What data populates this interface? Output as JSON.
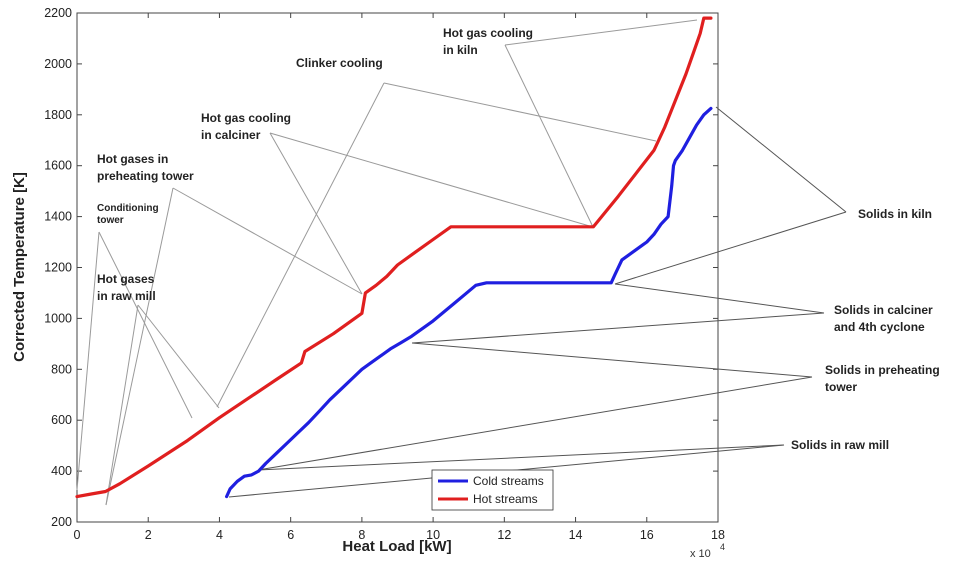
{
  "chart_data": {
    "type": "line",
    "xlabel": "Heat Load [kW]",
    "ylabel": "Corrected Temperature [K]",
    "x_multiplier_label": "x 10",
    "x_multiplier_exp": "4",
    "xlim": [
      0,
      180000
    ],
    "ylim": [
      200,
      2200
    ],
    "xticks": [
      0,
      20000,
      40000,
      60000,
      80000,
      100000,
      120000,
      140000,
      160000,
      180000
    ],
    "xtick_labels": [
      "0",
      "2",
      "4",
      "6",
      "8",
      "10",
      "12",
      "14",
      "16",
      "18"
    ],
    "yticks": [
      200,
      400,
      600,
      800,
      1000,
      1200,
      1400,
      1600,
      1800,
      2000,
      2200
    ],
    "ytick_labels": [
      "200",
      "400",
      "600",
      "800",
      "1000",
      "1200",
      "1400",
      "1600",
      "1800",
      "2000",
      "2200"
    ],
    "grid": false,
    "legend_position": "bottom-center",
    "series": [
      {
        "name": "Cold streams",
        "color": "#1f1fe0",
        "x": [
          42000,
          43000,
          45000,
          47000,
          49000,
          51000,
          53000,
          56000,
          59000,
          62000,
          65000,
          68000,
          71000,
          74000,
          77000,
          80000,
          82000,
          85000,
          88000,
          91000,
          94000,
          97000,
          100000,
          103000,
          106000,
          109000,
          112000,
          115000,
          120000,
          130000,
          140000,
          150000,
          151000,
          152000,
          153000,
          155000,
          157000,
          159000,
          160000,
          162000,
          164000,
          166000,
          167000,
          167500,
          168000,
          170000,
          172000,
          174000,
          176000,
          178000
        ],
        "y": [
          300,
          330,
          360,
          380,
          385,
          400,
          430,
          470,
          510,
          550,
          590,
          635,
          680,
          720,
          760,
          800,
          820,
          850,
          880,
          905,
          930,
          960,
          990,
          1025,
          1060,
          1095,
          1130,
          1140,
          1140,
          1140,
          1140,
          1140,
          1170,
          1200,
          1230,
          1250,
          1270,
          1290,
          1300,
          1330,
          1370,
          1400,
          1520,
          1600,
          1620,
          1660,
          1710,
          1760,
          1800,
          1825
        ]
      },
      {
        "name": "Hot streams",
        "color": "#e01f1f",
        "x": [
          0,
          4000,
          8000,
          12000,
          20000,
          31000,
          40000,
          48000,
          56000,
          63000,
          64000,
          72000,
          80000,
          81000,
          84000,
          87000,
          90000,
          95000,
          100000,
          105000,
          115000,
          125000,
          135000,
          145000,
          152000,
          157000,
          162000,
          163000,
          165000,
          167000,
          169000,
          171000,
          173000,
          175000,
          176000,
          178000
        ],
        "y": [
          300,
          310,
          320,
          350,
          420,
          520,
          610,
          685,
          760,
          825,
          870,
          940,
          1020,
          1100,
          1130,
          1165,
          1210,
          1260,
          1310,
          1360,
          1360,
          1360,
          1360,
          1360,
          1480,
          1570,
          1660,
          1690,
          1750,
          1820,
          1890,
          1960,
          2040,
          2120,
          2180,
          2180
        ]
      }
    ],
    "annotations": [
      {
        "lines": [
          "Hot gas cooling",
          "in kiln"
        ],
        "color": "#222222"
      },
      {
        "lines": [
          "Clinker cooling"
        ],
        "color": "#222222"
      },
      {
        "lines": [
          "Hot gas cooling",
          "in calciner"
        ],
        "color": "#222222"
      },
      {
        "lines": [
          "Hot gases in",
          "preheating tower"
        ],
        "color": "#222222"
      },
      {
        "lines": [
          "Conditioning",
          "tower"
        ],
        "color": "#222222",
        "small": true
      },
      {
        "lines": [
          "Hot gases",
          "in raw mill"
        ],
        "color": "#222222"
      },
      {
        "lines": [
          "Solids in kiln"
        ],
        "color": "#222222"
      },
      {
        "lines": [
          "Solids in calciner",
          "and 4th cyclone"
        ],
        "color": "#222222"
      },
      {
        "lines": [
          "Solids in preheating",
          "tower"
        ],
        "color": "#222222"
      },
      {
        "lines": [
          "Solids in raw mill"
        ],
        "color": "#222222"
      }
    ]
  }
}
